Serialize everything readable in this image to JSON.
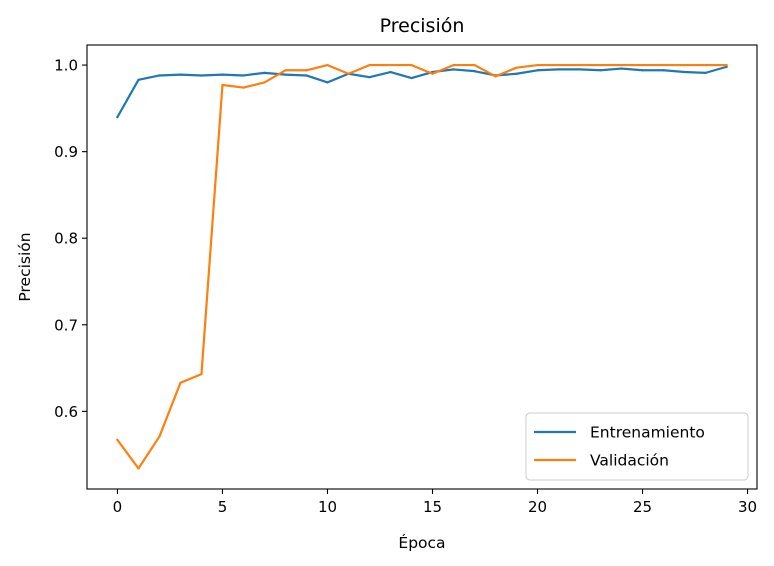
{
  "chart_data": {
    "type": "line",
    "title": "Precisión",
    "xlabel": "Época",
    "ylabel": "Precisión",
    "xlim": [
      -1.45,
      30.45
    ],
    "ylim": [
      0.5103,
      1.0232
    ],
    "xticks": [
      0,
      5,
      10,
      15,
      20,
      25,
      30
    ],
    "yticks": [
      0.6,
      0.7,
      0.8,
      0.9,
      1.0
    ],
    "ytick_labels": [
      "0.6",
      "0.7",
      "0.8",
      "0.9",
      "1.0"
    ],
    "legend_position": "lower-right",
    "grid": false,
    "x": [
      0,
      1,
      2,
      3,
      4,
      5,
      6,
      7,
      8,
      9,
      10,
      11,
      12,
      13,
      14,
      15,
      16,
      17,
      18,
      19,
      20,
      21,
      22,
      23,
      24,
      25,
      26,
      27,
      28,
      29
    ],
    "series": [
      {
        "name": "Entrenamiento",
        "color": "#1f77b4",
        "values": [
          0.94,
          0.983,
          0.988,
          0.989,
          0.988,
          0.989,
          0.988,
          0.991,
          0.989,
          0.988,
          0.98,
          0.99,
          0.986,
          0.992,
          0.985,
          0.992,
          0.995,
          0.993,
          0.988,
          0.99,
          0.994,
          0.995,
          0.995,
          0.994,
          0.996,
          0.994,
          0.994,
          0.992,
          0.991,
          0.998
        ]
      },
      {
        "name": "Validación",
        "color": "#ff7f0e",
        "values": [
          0.567,
          0.534,
          0.571,
          0.633,
          0.643,
          0.977,
          0.974,
          0.98,
          0.994,
          0.994,
          1.0,
          0.99,
          1.0,
          1.0,
          1.0,
          0.99,
          1.0,
          1.0,
          0.987,
          0.997,
          1.0,
          1.0,
          1.0,
          1.0,
          1.0,
          1.0,
          1.0,
          1.0,
          1.0,
          1.0
        ]
      }
    ]
  }
}
